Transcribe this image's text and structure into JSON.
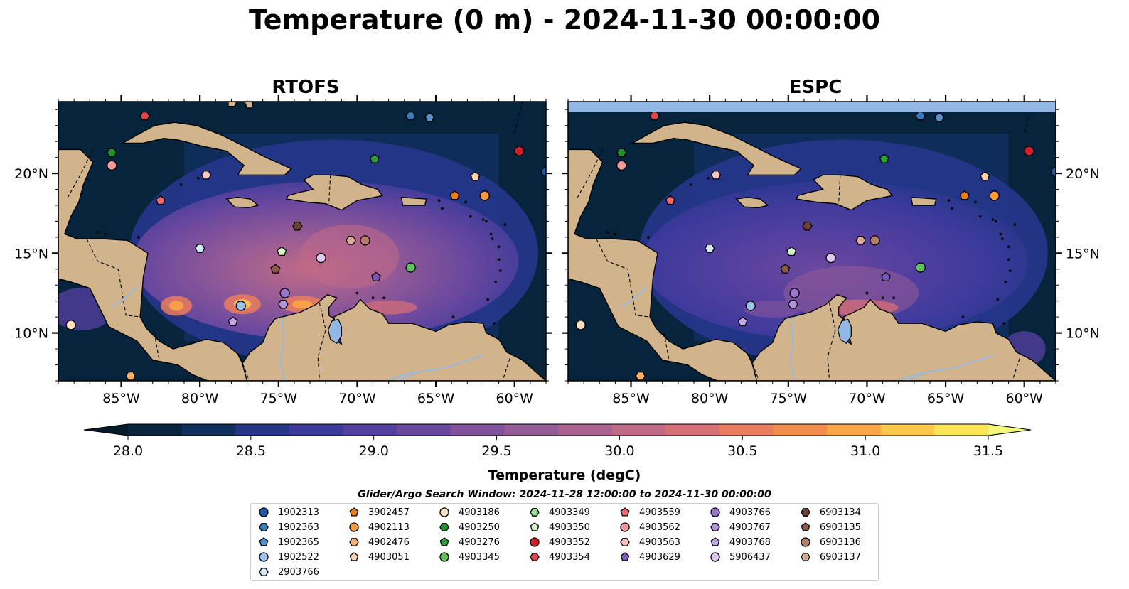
{
  "title": "Temperature (0 m) - 2024-11-30 00:00:00",
  "panels": [
    {
      "id": "rtofs",
      "title": "RTOFS",
      "has_top_strip": false,
      "has_left_labels": true
    },
    {
      "id": "espc",
      "title": "ESPC",
      "has_top_strip": true,
      "has_left_labels": false
    }
  ],
  "map_extent": {
    "lon_min": -89,
    "lon_max": -58,
    "lat_min": 7,
    "lat_max": 24.5
  },
  "lon_ticks": [
    {
      "v": -85,
      "label": "85°W"
    },
    {
      "v": -80,
      "label": "80°W"
    },
    {
      "v": -75,
      "label": "75°W"
    },
    {
      "v": -70,
      "label": "70°W"
    },
    {
      "v": -65,
      "label": "65°W"
    },
    {
      "v": -60,
      "label": "60°W"
    }
  ],
  "lat_ticks": [
    {
      "v": 10,
      "label": "10°N"
    },
    {
      "v": 15,
      "label": "15°N"
    },
    {
      "v": 20,
      "label": "20°N"
    }
  ],
  "colorbar": {
    "label": "Temperature (degC)",
    "min": 28.0,
    "max": 31.5,
    "ticks": [
      "28.0",
      "28.5",
      "29.0",
      "29.5",
      "30.0",
      "30.5",
      "31.0",
      "31.5"
    ],
    "colors": [
      "#06243b",
      "#0f2f5e",
      "#253689",
      "#3b3a9b",
      "#533f9f",
      "#6a489e",
      "#80519c",
      "#955b96",
      "#ab6290",
      "#c16a86",
      "#d86f76",
      "#eb7c5e",
      "#f58d4a",
      "#fba545",
      "#fdc64d",
      "#fce658"
    ],
    "extend_low_color": "#031a2a",
    "extend_high_color": "#f3f77a"
  },
  "legend": {
    "title": "Glider/Argo Search Window: 2024-11-28 12:00:00 to 2024-11-30 00:00:00",
    "columns": [
      [
        {
          "id": "1902313",
          "color": "#1f5aa0",
          "marker": "circle"
        },
        {
          "id": "1902363",
          "color": "#3a7bc0",
          "marker": "hexagon"
        },
        {
          "id": "1902365",
          "color": "#5a92cf",
          "marker": "pentagon"
        },
        {
          "id": "1902522",
          "color": "#9ec3e8",
          "marker": "circle"
        },
        {
          "id": "2903766",
          "color": "#d2e6f6",
          "marker": "hexagon"
        }
      ],
      [
        {
          "id": "3902457",
          "color": "#f27d0c",
          "marker": "pentagon"
        },
        {
          "id": "4902113",
          "color": "#fb9a3a",
          "marker": "circle"
        },
        {
          "id": "4902476",
          "color": "#fdb066",
          "marker": "hexagon"
        },
        {
          "id": "4903051",
          "color": "#fdd2a6",
          "marker": "pentagon"
        }
      ],
      [
        {
          "id": "4903186",
          "color": "#fde0c4",
          "marker": "circle"
        },
        {
          "id": "4903250",
          "color": "#1f8f2f",
          "marker": "hexagon"
        },
        {
          "id": "4903276",
          "color": "#2e9e3a",
          "marker": "pentagon"
        },
        {
          "id": "4903345",
          "color": "#5fc25f",
          "marker": "circle"
        }
      ],
      [
        {
          "id": "4903349",
          "color": "#92dd8d",
          "marker": "hexagon"
        },
        {
          "id": "4903350",
          "color": "#d3f5c8",
          "marker": "pentagon"
        },
        {
          "id": "4903352",
          "color": "#d0202a",
          "marker": "circle"
        },
        {
          "id": "4903354",
          "color": "#e0474a",
          "marker": "hexagon"
        }
      ],
      [
        {
          "id": "4903559",
          "color": "#ec6a6c",
          "marker": "pentagon"
        },
        {
          "id": "4903562",
          "color": "#f49a9a",
          "marker": "circle"
        },
        {
          "id": "4903563",
          "color": "#f9c3c6",
          "marker": "hexagon"
        },
        {
          "id": "4903629",
          "color": "#7a57b8",
          "marker": "pentagon"
        }
      ],
      [
        {
          "id": "4903766",
          "color": "#9a77cc",
          "marker": "circle"
        },
        {
          "id": "4903767",
          "color": "#b394dc",
          "marker": "hexagon"
        },
        {
          "id": "4903768",
          "color": "#c4a9e6",
          "marker": "pentagon"
        },
        {
          "id": "5906437",
          "color": "#dcc8f0",
          "marker": "circle"
        }
      ],
      [
        {
          "id": "6903134",
          "color": "#6e4034",
          "marker": "hexagon"
        },
        {
          "id": "6903135",
          "color": "#8d5a4a",
          "marker": "pentagon"
        },
        {
          "id": "6903136",
          "color": "#b47d6c",
          "marker": "circle"
        },
        {
          "id": "6903137",
          "color": "#dcaa98",
          "marker": "hexagon"
        }
      ]
    ]
  },
  "floats": [
    {
      "id": "4903354",
      "lon": -83.5,
      "lat": 23.6
    },
    {
      "id": "1902363",
      "lon": -66.6,
      "lat": 23.6
    },
    {
      "id": "1902365",
      "lon": -65.4,
      "lat": 23.5
    },
    {
      "id": "4903250",
      "lon": -85.6,
      "lat": 21.3
    },
    {
      "id": "4903352",
      "lon": -59.7,
      "lat": 21.4
    },
    {
      "id": "4903276",
      "lon": -68.9,
      "lat": 20.9
    },
    {
      "id": "4903562",
      "lon": -85.6,
      "lat": 20.5
    },
    {
      "id": "4903563",
      "lon": -79.6,
      "lat": 19.9
    },
    {
      "id": "1902313",
      "lon": -58.0,
      "lat": 20.1
    },
    {
      "id": "4903051",
      "lon": -62.5,
      "lat": 19.8
    },
    {
      "id": "3902457",
      "lon": -63.8,
      "lat": 18.6
    },
    {
      "id": "4902113",
      "lon": -61.9,
      "lat": 18.6
    },
    {
      "id": "4903559",
      "lon": -82.5,
      "lat": 18.3
    },
    {
      "id": "6903134",
      "lon": -73.8,
      "lat": 16.7
    },
    {
      "id": "6903137",
      "lon": -70.4,
      "lat": 15.8
    },
    {
      "id": "6903136",
      "lon": -69.5,
      "lat": 15.8
    },
    {
      "id": "2903766",
      "lon": -80.0,
      "lat": 15.3
    },
    {
      "id": "4903350",
      "lon": -74.8,
      "lat": 15.1
    },
    {
      "id": "5906437",
      "lon": -72.3,
      "lat": 14.7
    },
    {
      "id": "4903345",
      "lon": -66.6,
      "lat": 14.1
    },
    {
      "id": "6903135",
      "lon": -75.2,
      "lat": 14.0
    },
    {
      "id": "4903629",
      "lon": -68.8,
      "lat": 13.5
    },
    {
      "id": "4903766",
      "lon": -74.6,
      "lat": 12.5
    },
    {
      "id": "4903767",
      "lon": -74.7,
      "lat": 11.8
    },
    {
      "id": "1902522",
      "lon": -77.4,
      "lat": 11.7
    },
    {
      "id": "4903768",
      "lon": -77.9,
      "lat": 10.7
    },
    {
      "id": "4903186",
      "lon": -88.2,
      "lat": 10.5
    },
    {
      "id": "4902476",
      "lon": -84.4,
      "lat": 7.3
    }
  ]
}
